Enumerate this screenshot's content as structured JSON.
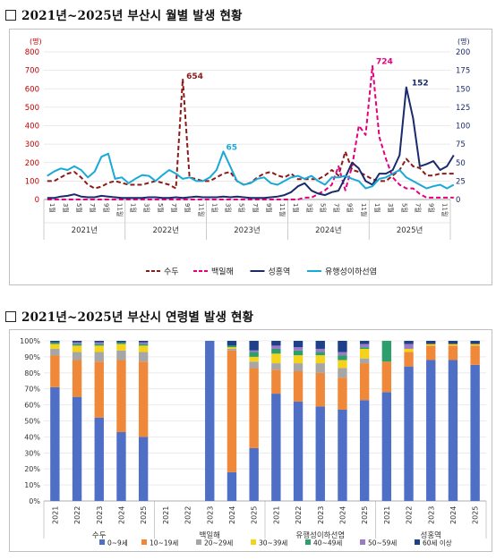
{
  "page": {
    "title1": "2021년~2025년 부산시 월별 발생 현황",
    "title2": "2021년~2025년 부산시 연령별 발생 현황"
  },
  "chart_data": [
    {
      "type": "line",
      "y_left_unit": "(명)",
      "y_right_unit": "(명)",
      "ylim_left": [
        0,
        800
      ],
      "ylim_right": [
        0,
        200
      ],
      "yticks_left": [
        "0",
        "100",
        "200",
        "300",
        "400",
        "500",
        "600",
        "700",
        "800"
      ],
      "yticks_right": [
        "0",
        "25",
        "50",
        "75",
        "100",
        "125",
        "150",
        "175",
        "200"
      ],
      "month_labels": [
        "1월",
        "3월",
        "5월",
        "7월",
        "9월",
        "11월"
      ],
      "years": [
        "2021년",
        "2022년",
        "2023년",
        "2024년",
        "2025년"
      ],
      "legend_position": "bottom",
      "series": [
        {
          "name": "수두",
          "axis": "left",
          "color": "#8B1A1A",
          "dash": "dash",
          "values": [
            100,
            100,
            120,
            140,
            150,
            120,
            80,
            60,
            70,
            90,
            100,
            90,
            80,
            80,
            80,
            90,
            100,
            90,
            80,
            60,
            654,
            120,
            110,
            100,
            100,
            120,
            140,
            150,
            100,
            80,
            90,
            120,
            140,
            150,
            130,
            120,
            140,
            110,
            110,
            110,
            110,
            130,
            160,
            130,
            260,
            160,
            150,
            130,
            110,
            100,
            100,
            130,
            160,
            220,
            180,
            170,
            130,
            130,
            140,
            140,
            140
          ]
        },
        {
          "name": "백일해",
          "axis": "left",
          "color": "#E4007F",
          "dash": "dash",
          "values": [
            0,
            0,
            0,
            0,
            0,
            0,
            0,
            0,
            0,
            0,
            0,
            0,
            0,
            0,
            0,
            0,
            0,
            0,
            0,
            0,
            0,
            0,
            0,
            0,
            0,
            0,
            0,
            0,
            0,
            0,
            0,
            0,
            0,
            0,
            0,
            0,
            0,
            0,
            10,
            10,
            30,
            50,
            80,
            180,
            50,
            180,
            400,
            350,
            724,
            340,
            220,
            120,
            80,
            60,
            60,
            30,
            10,
            10,
            10,
            10,
            10
          ]
        },
        {
          "name": "성홍역",
          "axis": "right",
          "color": "#1A2A6C",
          "dash": "solid",
          "values": [
            2,
            2,
            4,
            5,
            7,
            4,
            3,
            3,
            5,
            4,
            3,
            2,
            2,
            2,
            2,
            3,
            3,
            2,
            2,
            3,
            2,
            3,
            4,
            3,
            3,
            3,
            4,
            3,
            4,
            3,
            2,
            2,
            2,
            3,
            4,
            6,
            10,
            18,
            22,
            12,
            8,
            6,
            10,
            12,
            30,
            50,
            42,
            25,
            20,
            35,
            35,
            40,
            60,
            152,
            110,
            45,
            48,
            52,
            40,
            45,
            60
          ]
        },
        {
          "name": "유행성이하선염",
          "axis": "right",
          "color": "#19A9D8",
          "dash": "solid",
          "values": [
            32,
            38,
            42,
            40,
            45,
            40,
            30,
            38,
            58,
            62,
            28,
            30,
            22,
            28,
            33,
            32,
            25,
            33,
            40,
            35,
            28,
            30,
            25,
            25,
            30,
            40,
            65,
            45,
            25,
            20,
            22,
            28,
            30,
            22,
            20,
            25,
            30,
            32,
            28,
            32,
            25,
            20,
            30,
            30,
            32,
            28,
            25,
            15,
            18,
            28,
            30,
            35,
            40,
            30,
            25,
            20,
            15,
            18,
            20,
            15,
            20
          ]
        }
      ],
      "annotations": [
        {
          "text": "654",
          "series": "수두",
          "index": 20
        },
        {
          "text": "65",
          "series": "유행성이하선염",
          "index": 26
        },
        {
          "text": "724",
          "series": "백일해",
          "index": 48
        },
        {
          "text": "152",
          "series": "성홍역",
          "index": 53
        }
      ]
    },
    {
      "type": "bar",
      "stacked": "percent",
      "yticks": [
        "0%",
        "10%",
        "20%",
        "30%",
        "40%",
        "50%",
        "60%",
        "70%",
        "80%",
        "90%",
        "100%"
      ],
      "ylim": [
        0,
        100
      ],
      "categories": [
        "2021",
        "2022",
        "2023",
        "2024",
        "2025",
        "2021",
        "2022",
        "2023",
        "2024",
        "2025",
        "2021",
        "2022",
        "2023",
        "2024",
        "2025",
        "2021",
        "2022",
        "2023",
        "2024",
        "2025"
      ],
      "groups": [
        "수두",
        "백일해",
        "유행성이하선염",
        "성홍역"
      ],
      "legend_position": "bottom",
      "series": [
        {
          "name": "0~9세",
          "color": "#4F6EC6",
          "values": [
            71,
            65,
            52,
            43,
            40,
            0,
            0,
            100,
            18,
            33,
            67,
            62,
            59,
            57,
            63,
            68,
            84,
            88,
            88,
            85
          ]
        },
        {
          "name": "10~19세",
          "color": "#F0883A",
          "values": [
            20,
            23,
            35,
            45,
            47,
            0,
            0,
            0,
            76,
            50,
            15,
            19,
            21,
            20,
            23,
            19,
            9,
            9,
            9,
            12
          ]
        },
        {
          "name": "20~29세",
          "color": "#A6A6A6",
          "values": [
            4,
            5,
            6,
            6,
            6,
            0,
            0,
            0,
            1,
            4,
            4,
            5,
            6,
            6,
            3,
            0,
            0,
            0,
            0,
            0
          ]
        },
        {
          "name": "30~39세",
          "color": "#F5D31B",
          "values": [
            3,
            4,
            4,
            4,
            4,
            0,
            0,
            0,
            1,
            3,
            6,
            5,
            5,
            5,
            6,
            0,
            2,
            1,
            1,
            1
          ]
        },
        {
          "name": "40~49세",
          "color": "#2E9E6C",
          "values": [
            1,
            1,
            1,
            1,
            1,
            0,
            0,
            0,
            1,
            3,
            3,
            3,
            2,
            3,
            1,
            13,
            0,
            0,
            0,
            0
          ]
        },
        {
          "name": "50~59세",
          "color": "#9B7BC7",
          "values": [
            0,
            1,
            1,
            0,
            1,
            0,
            0,
            0,
            0,
            1,
            2,
            2,
            2,
            2,
            2,
            0,
            3,
            0,
            0,
            0
          ]
        },
        {
          "name": "60세 이상",
          "color": "#1E3F8A",
          "values": [
            1,
            1,
            1,
            1,
            1,
            0,
            0,
            0,
            3,
            6,
            3,
            4,
            5,
            7,
            2,
            0,
            2,
            2,
            2,
            2
          ]
        }
      ]
    }
  ]
}
